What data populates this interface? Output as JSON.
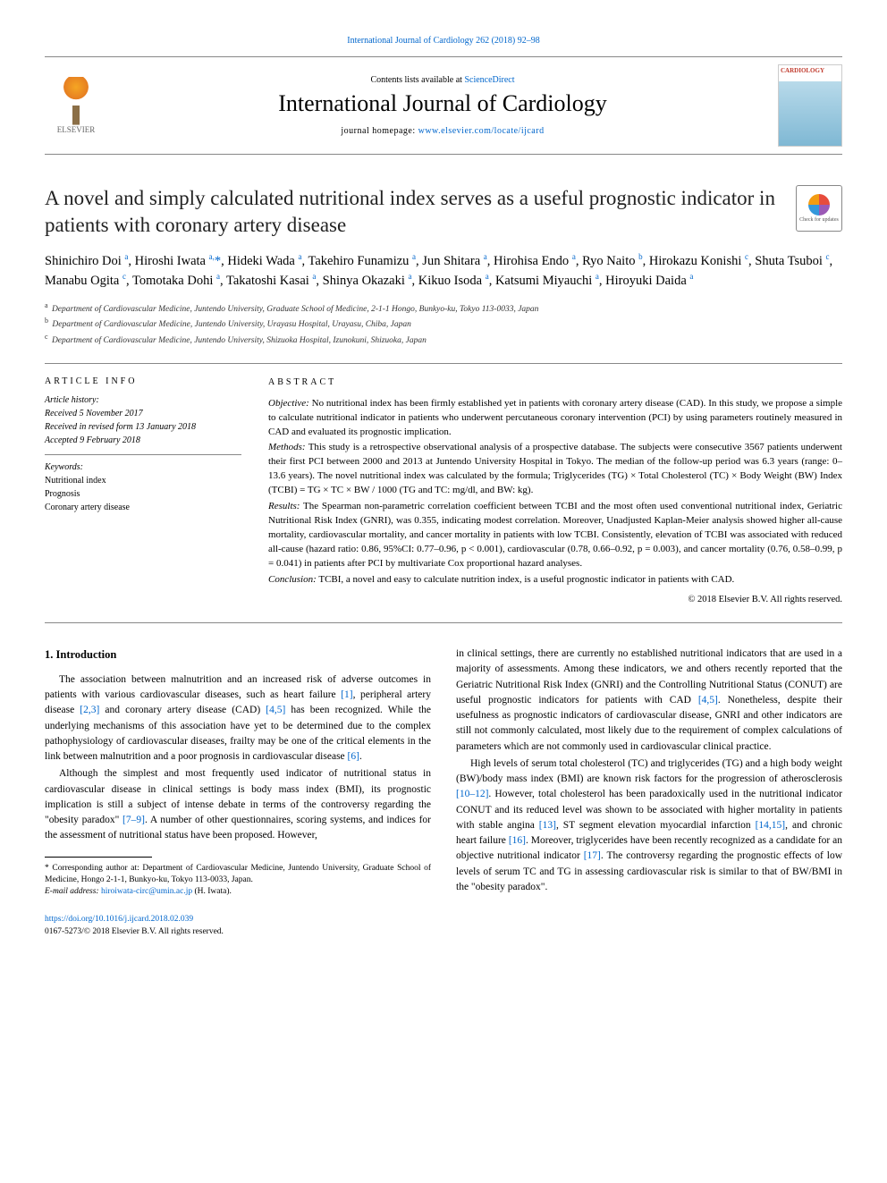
{
  "top_link": {
    "journal": "International Journal of Cardiology",
    "cite": "262 (2018) 92–98"
  },
  "header": {
    "contents_prefix": "Contents lists available at ",
    "contents_link": "ScienceDirect",
    "journal_name": "International Journal of Cardiology",
    "homepage_prefix": "journal homepage: ",
    "homepage_url": "www.elsevier.com/locate/ijcard",
    "cover_title": "CARDIOLOGY",
    "elsevier_label": "ELSEVIER"
  },
  "check_updates": "Check for updates",
  "title": "A novel and simply calculated nutritional index serves as a useful prognostic indicator in patients with coronary artery disease",
  "authors_html": "Shinichiro Doi <sup>a</sup>, Hiroshi Iwata <sup>a,</sup><span class='star'>*</span>, Hideki Wada <sup>a</sup>, Takehiro Funamizu <sup>a</sup>, Jun Shitara <sup>a</sup>, Hirohisa Endo <sup>a</sup>, Ryo Naito <sup>b</sup>, Hirokazu Konishi <sup>c</sup>, Shuta Tsuboi <sup>c</sup>, Manabu Ogita <sup>c</sup>, Tomotaka Dohi <sup>a</sup>, Takatoshi Kasai <sup>a</sup>, Shinya Okazaki <sup>a</sup>, Kikuo Isoda <sup>a</sup>, Katsumi Miyauchi <sup>a</sup>, Hiroyuki Daida <sup>a</sup>",
  "affiliations": [
    {
      "sup": "a",
      "text": "Department of Cardiovascular Medicine, Juntendo University, Graduate School of Medicine, 2-1-1 Hongo, Bunkyo-ku, Tokyo 113-0033, Japan"
    },
    {
      "sup": "b",
      "text": "Department of Cardiovascular Medicine, Juntendo University, Urayasu Hospital, Urayasu, Chiba, Japan"
    },
    {
      "sup": "c",
      "text": "Department of Cardiovascular Medicine, Juntendo University, Shizuoka Hospital, Izunokuni, Shizuoka, Japan"
    }
  ],
  "info": {
    "heading": "ARTICLE INFO",
    "history_label": "Article history:",
    "received": "Received 5 November 2017",
    "revised": "Received in revised form 13 January 2018",
    "accepted": "Accepted 9 February 2018",
    "keywords_label": "Keywords:",
    "keywords": [
      "Nutritional index",
      "Prognosis",
      "Coronary artery disease"
    ]
  },
  "abstract": {
    "heading": "ABSTRACT",
    "objective": "No nutritional index has been firmly established yet in patients with coronary artery disease (CAD). In this study, we propose a simple to calculate nutritional indicator in patients who underwent percutaneous coronary intervention (PCI) by using parameters routinely measured in CAD and evaluated its prognostic implication.",
    "methods": "This study is a retrospective observational analysis of a prospective database. The subjects were consecutive 3567 patients underwent their first PCI between 2000 and 2013 at Juntendo University Hospital in Tokyo. The median of the follow-up period was 6.3 years (range: 0–13.6 years). The novel nutritional index was calculated by the formula; Triglycerides (TG) × Total Cholesterol (TC) × Body Weight (BW) Index (TCBI) = TG × TC × BW / 1000 (TG and TC: mg/dl, and BW: kg).",
    "results": "The Spearman non-parametric correlation coefficient between TCBI and the most often used conventional nutritional index, Geriatric Nutritional Risk Index (GNRI), was 0.355, indicating modest correlation. Moreover, Unadjusted Kaplan-Meier analysis showed higher all-cause mortality, cardiovascular mortality, and cancer mortality in patients with low TCBI. Consistently, elevation of TCBI was associated with reduced all-cause (hazard ratio: 0.86, 95%CI: 0.77–0.96, p < 0.001), cardiovascular (0.78, 0.66–0.92, p = 0.003), and cancer mortality (0.76, 0.58–0.99, p = 0.041) in patients after PCI by multivariate Cox proportional hazard analyses.",
    "conclusion": "TCBI, a novel and easy to calculate nutrition index, is a useful prognostic indicator in patients with CAD.",
    "copyright": "© 2018 Elsevier B.V. All rights reserved."
  },
  "body": {
    "section_heading": "1. Introduction",
    "p1": "The association between malnutrition and an increased risk of adverse outcomes in patients with various cardiovascular diseases, such as heart failure [1], peripheral artery disease [2,3] and coronary artery disease (CAD) [4,5] has been recognized. While the underlying mechanisms of this association have yet to be determined due to the complex pathophysiology of cardiovascular diseases, frailty may be one of the critical elements in the link between malnutrition and a poor prognosis in cardiovascular disease [6].",
    "p2": "Although the simplest and most frequently used indicator of nutritional status in cardiovascular disease in clinical settings is body mass index (BMI), its prognostic implication is still a subject of intense debate in terms of the controversy regarding the \"obesity paradox\" [7–9]. A number of other questionnaires, scoring systems, and indices for the assessment of nutritional status have been proposed. However,",
    "p3": "in clinical settings, there are currently no established nutritional indicators that are used in a majority of assessments. Among these indicators, we and others recently reported that the Geriatric Nutritional Risk Index (GNRI) and the Controlling Nutritional Status (CONUT) are useful prognostic indicators for patients with CAD [4,5]. Nonetheless, despite their usefulness as prognostic indicators of cardiovascular disease, GNRI and other indicators are still not commonly calculated, most likely due to the requirement of complex calculations of parameters which are not commonly used in cardiovascular clinical practice.",
    "p4": "High levels of serum total cholesterol (TC) and triglycerides (TG) and a high body weight (BW)/body mass index (BMI) are known risk factors for the progression of atherosclerosis [10–12]. However, total cholesterol has been paradoxically used in the nutritional indicator CONUT and its reduced level was shown to be associated with higher mortality in patients with stable angina [13], ST segment elevation myocardial infarction [14,15], and chronic heart failure [16]. Moreover, triglycerides have been recently recognized as a candidate for an objective nutritional indicator [17]. The controversy regarding the prognostic effects of low levels of serum TC and TG in assessing cardiovascular risk is similar to that of BW/BMI in the \"obesity paradox\"."
  },
  "footnote": {
    "corr": "* Corresponding author at: Department of Cardiovascular Medicine, Juntendo University, Graduate School of Medicine, Hongo 2-1-1, Bunkyo-ku, Tokyo 113-0033, Japan.",
    "email_label": "E-mail address: ",
    "email": "hiroiwata-circ@umin.ac.jp",
    "email_who": " (H. Iwata)."
  },
  "bottom": {
    "doi": "https://doi.org/10.1016/j.ijcard.2018.02.039",
    "issn_line": "0167-5273/© 2018 Elsevier B.V. All rights reserved."
  },
  "ref_color": "#0066cc",
  "colors": {
    "link": "#0066cc",
    "text": "#000000",
    "rule": "#888888"
  }
}
